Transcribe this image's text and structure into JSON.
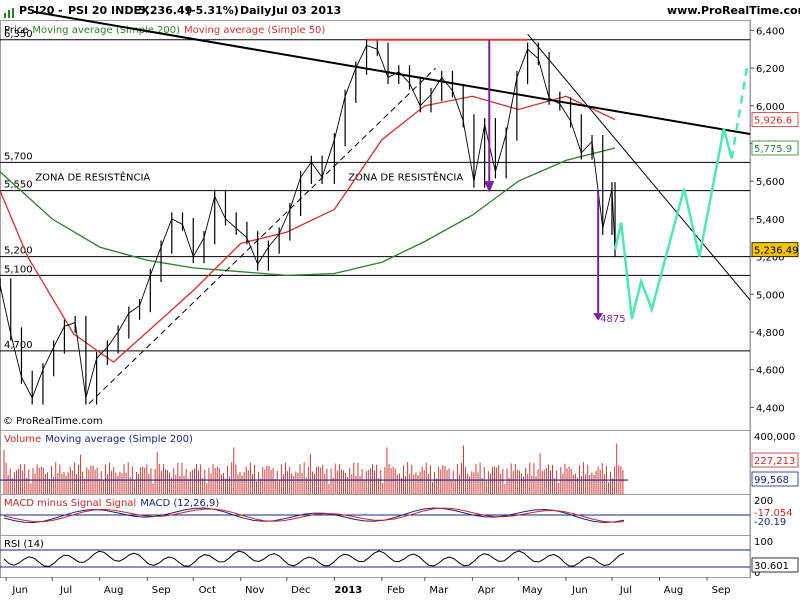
{
  "header": {
    "symbol": "PSI20",
    "name": "PSI 20 INDEX",
    "last": "5,236.49",
    "change": "(-5.31%)",
    "period": "Daily",
    "date": "Jul 03 2013",
    "site": "www.ProRealTime.com"
  },
  "chart_data": {
    "type": "line",
    "main": {
      "legend": [
        {
          "label": "Price",
          "color": "#000000"
        },
        {
          "label": "Moving average (Simple 200)",
          "color": "#2e7d32"
        },
        {
          "label": "Moving average (Simple 50)",
          "color": "#d32f2f"
        }
      ],
      "y_ticks": [
        4400,
        4600,
        4800,
        5000,
        5200,
        5400,
        5600,
        5800,
        6000,
        6200,
        6400
      ],
      "ylim": [
        4280,
        6455
      ],
      "horizontal_levels": [
        {
          "value": 6350,
          "label": "6,350"
        },
        {
          "value": 5700,
          "label": "5,700"
        },
        {
          "value": 5550,
          "label": "5,550"
        },
        {
          "value": 5200,
          "label": "5,200"
        },
        {
          "value": 5100,
          "label": "5,100"
        },
        {
          "value": 4700,
          "label": "4,700"
        }
      ],
      "zones": [
        {
          "label": "ZONA DE RESISTÊNCIA"
        },
        {
          "label": "ZONA DE RESISTÊNCIA"
        }
      ],
      "target": {
        "label": "4875",
        "value": 4875
      },
      "value_labels": [
        {
          "value": 5926.6,
          "text": "5,926.6",
          "color": "#d32f2f"
        },
        {
          "value": 5775.9,
          "text": "5,775.9",
          "color": "#2e7d32"
        },
        {
          "value": 5236.49,
          "text": "5,236.49",
          "color": "#000000",
          "bg": "#f5c400"
        }
      ],
      "close": [
        {
          "date": "2012-05-28",
          "v": 5050
        },
        {
          "date": "2012-06-04",
          "v": 4790
        },
        {
          "date": "2012-06-11",
          "v": 4560
        },
        {
          "date": "2012-06-18",
          "v": 4450
        },
        {
          "date": "2012-06-25",
          "v": 4600
        },
        {
          "date": "2012-07-02",
          "v": 4720
        },
        {
          "date": "2012-07-09",
          "v": 4830
        },
        {
          "date": "2012-07-16",
          "v": 4850
        },
        {
          "date": "2012-07-23",
          "v": 4450
        },
        {
          "date": "2012-07-30",
          "v": 4660
        },
        {
          "date": "2012-08-06",
          "v": 4720
        },
        {
          "date": "2012-08-13",
          "v": 4800
        },
        {
          "date": "2012-08-20",
          "v": 4900
        },
        {
          "date": "2012-08-27",
          "v": 4940
        },
        {
          "date": "2012-09-03",
          "v": 5100
        },
        {
          "date": "2012-09-10",
          "v": 5250
        },
        {
          "date": "2012-09-17",
          "v": 5400
        },
        {
          "date": "2012-09-24",
          "v": 5370
        },
        {
          "date": "2012-10-01",
          "v": 5200
        },
        {
          "date": "2012-10-08",
          "v": 5300
        },
        {
          "date": "2012-10-15",
          "v": 5520
        },
        {
          "date": "2012-10-22",
          "v": 5400
        },
        {
          "date": "2012-10-29",
          "v": 5350
        },
        {
          "date": "2012-11-05",
          "v": 5300
        },
        {
          "date": "2012-11-12",
          "v": 5160
        },
        {
          "date": "2012-11-19",
          "v": 5250
        },
        {
          "date": "2012-11-26",
          "v": 5320
        },
        {
          "date": "2012-12-03",
          "v": 5450
        },
        {
          "date": "2012-12-10",
          "v": 5620
        },
        {
          "date": "2012-12-17",
          "v": 5700
        },
        {
          "date": "2012-12-24",
          "v": 5620
        },
        {
          "date": "2013-01-01",
          "v": 5820
        },
        {
          "date": "2013-01-08",
          "v": 6050
        },
        {
          "date": "2013-01-15",
          "v": 6200
        },
        {
          "date": "2013-01-22",
          "v": 6320
        },
        {
          "date": "2013-01-29",
          "v": 6300
        },
        {
          "date": "2013-02-05",
          "v": 6150
        },
        {
          "date": "2013-02-12",
          "v": 6180
        },
        {
          "date": "2013-02-19",
          "v": 6120
        },
        {
          "date": "2013-02-26",
          "v": 6000
        },
        {
          "date": "2013-03-05",
          "v": 6060
        },
        {
          "date": "2013-03-12",
          "v": 6150
        },
        {
          "date": "2013-03-19",
          "v": 6080
        },
        {
          "date": "2013-03-26",
          "v": 5920
        },
        {
          "date": "2013-04-02",
          "v": 5600
        },
        {
          "date": "2013-04-09",
          "v": 5900
        },
        {
          "date": "2013-04-16",
          "v": 5650
        },
        {
          "date": "2013-04-23",
          "v": 5850
        },
        {
          "date": "2013-04-30",
          "v": 6150
        },
        {
          "date": "2013-05-07",
          "v": 6300
        },
        {
          "date": "2013-05-14",
          "v": 6250
        },
        {
          "date": "2013-05-21",
          "v": 6040
        },
        {
          "date": "2013-05-28",
          "v": 6010
        },
        {
          "date": "2013-06-04",
          "v": 5920
        },
        {
          "date": "2013-06-11",
          "v": 5750
        },
        {
          "date": "2013-06-18",
          "v": 5810
        },
        {
          "date": "2013-06-25",
          "v": 5350
        },
        {
          "date": "2013-07-01",
          "v": 5560
        },
        {
          "date": "2013-07-03",
          "v": 5236.49
        }
      ],
      "sma200": [
        {
          "date": "2012-05-28",
          "v": 5650
        },
        {
          "date": "2012-07-01",
          "v": 5400
        },
        {
          "date": "2012-08-01",
          "v": 5250
        },
        {
          "date": "2012-09-01",
          "v": 5180
        },
        {
          "date": "2012-10-01",
          "v": 5140
        },
        {
          "date": "2012-11-01",
          "v": 5120
        },
        {
          "date": "2012-12-01",
          "v": 5100
        },
        {
          "date": "2013-01-01",
          "v": 5110
        },
        {
          "date": "2013-02-01",
          "v": 5170
        },
        {
          "date": "2013-03-01",
          "v": 5280
        },
        {
          "date": "2013-04-01",
          "v": 5420
        },
        {
          "date": "2013-05-01",
          "v": 5600
        },
        {
          "date": "2013-06-01",
          "v": 5710
        },
        {
          "date": "2013-07-03",
          "v": 5775.9
        }
      ],
      "sma50": [
        {
          "date": "2012-05-28",
          "v": 5550
        },
        {
          "date": "2012-06-15",
          "v": 5200
        },
        {
          "date": "2012-07-15",
          "v": 4790
        },
        {
          "date": "2012-08-10",
          "v": 4640
        },
        {
          "date": "2012-09-01",
          "v": 4800
        },
        {
          "date": "2012-10-01",
          "v": 5020
        },
        {
          "date": "2012-11-01",
          "v": 5270
        },
        {
          "date": "2012-12-01",
          "v": 5330
        },
        {
          "date": "2013-01-01",
          "v": 5450
        },
        {
          "date": "2013-02-01",
          "v": 5820
        },
        {
          "date": "2013-03-01",
          "v": 6000
        },
        {
          "date": "2013-04-01",
          "v": 6050
        },
        {
          "date": "2013-05-01",
          "v": 5980
        },
        {
          "date": "2013-06-01",
          "v": 6050
        },
        {
          "date": "2013-07-03",
          "v": 5926.6
        }
      ],
      "projection": [
        {
          "date": "2013-07-03",
          "v": 5236
        },
        {
          "date": "2013-07-07",
          "v": 5380
        },
        {
          "date": "2013-07-14",
          "v": 4870
        },
        {
          "date": "2013-07-20",
          "v": 5070
        },
        {
          "date": "2013-07-27",
          "v": 4920
        },
        {
          "date": "2013-08-17",
          "v": 5560
        },
        {
          "date": "2013-08-27",
          "v": 5200
        },
        {
          "date": "2013-09-12",
          "v": 5880
        },
        {
          "date": "2013-09-17",
          "v": 5720
        },
        {
          "date": "2013-09-27",
          "v": 6200
        }
      ]
    },
    "x_ticks": [
      "Jun",
      "Jul",
      "Aug",
      "Sep",
      "Oct",
      "Nov",
      "Dec",
      "2013",
      "Feb",
      "Mar",
      "Apr",
      "May",
      "Jun",
      "Jul",
      "Aug",
      "Sep"
    ],
    "volume": {
      "legend": [
        {
          "label": "Volume",
          "color": "#c62828"
        },
        {
          "label": "Moving average (Simple 200)",
          "color": "#1a237e"
        }
      ],
      "y_ticks": [
        "400,000"
      ],
      "ylim": [
        0,
        400000
      ],
      "value_labels": [
        {
          "value": 227213,
          "text": "227,213",
          "color": "#c62828"
        },
        {
          "value": 99568,
          "text": "99,568",
          "color": "#1a237e"
        }
      ]
    },
    "macd": {
      "legend": [
        {
          "label": "MACD minus Signal",
          "color": "#c62828"
        },
        {
          "label": "Signal",
          "color": "#c62828"
        },
        {
          "label": "MACD (12,26,9)",
          "color": "#1a237e"
        }
      ],
      "y_ticks": [
        "200"
      ],
      "value_labels": [
        {
          "value": -17.054,
          "text": "-17.054",
          "color": "#c62828"
        },
        {
          "value": -20.19,
          "text": "-20.19",
          "color": "#1a237e"
        }
      ]
    },
    "rsi": {
      "legend": [
        {
          "label": "RSI (14)",
          "color": "#000000"
        }
      ],
      "y_ticks": [
        "100",
        "0"
      ],
      "value_labels": [
        {
          "value": 30.601,
          "text": "30.601",
          "color": "#000000"
        }
      ]
    }
  },
  "footer": {
    "watermark": "© ProRealTime.com"
  },
  "colors": {
    "price": "#000000",
    "sma50": "#d32f2f",
    "sma200": "#2e7d32",
    "projection": "#4ee8b8",
    "arrow": "#7b1fa2",
    "top": "#e53935"
  }
}
